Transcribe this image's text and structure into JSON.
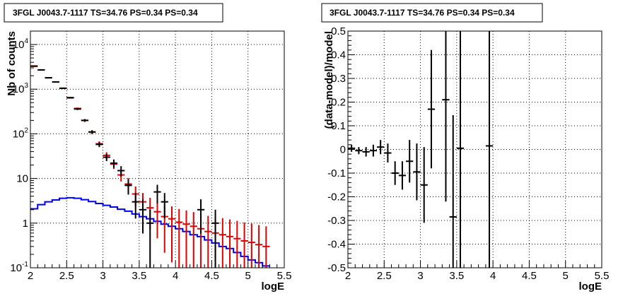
{
  "colors": {
    "data": "#000000",
    "model_total": "#e00000",
    "model_source": "#0000e6",
    "grid": "#000000"
  },
  "chart_data": [
    {
      "type": "histogram",
      "title": "3FGL J0043.7-1117 TS=34.76 PS=0.34 PS=0.34",
      "xlabel": "logE",
      "ylabel": "Nb of counts",
      "xlim": [
        2,
        5.5
      ],
      "ylim": [
        0.1,
        20000
      ],
      "yscale": "log",
      "grid": true,
      "x_ticks": [
        "2",
        "2.5",
        "3",
        "3.5",
        "4",
        "4.5",
        "5",
        "5.5"
      ],
      "y_ticks": [
        {
          "value": 0.1,
          "label": "10",
          "exp": "-1"
        },
        {
          "value": 1,
          "label": "1",
          "exp": ""
        },
        {
          "value": 10,
          "label": "10",
          "exp": ""
        },
        {
          "value": 100,
          "label": "10",
          "exp": "2"
        },
        {
          "value": 1000,
          "label": "10",
          "exp": "3"
        },
        {
          "value": 10000,
          "label": "10",
          "exp": "4"
        }
      ],
      "bin_centers": [
        2.05,
        2.15,
        2.25,
        2.35,
        2.45,
        2.55,
        2.65,
        2.75,
        2.85,
        2.95,
        3.05,
        3.15,
        3.25,
        3.35,
        3.45,
        3.55,
        3.65,
        3.75,
        3.85,
        3.95,
        4.05,
        4.15,
        4.25,
        4.35,
        4.45,
        4.55,
        4.65,
        4.75,
        4.85,
        4.95,
        5.05,
        5.15,
        5.25
      ],
      "bin_width": 0.1,
      "series": [
        {
          "key": "data",
          "values": [
            3300,
            2700,
            1800,
            1450,
            1050,
            640,
            360,
            200,
            110,
            58,
            30,
            22,
            15,
            7,
            3,
            2,
            1,
            5,
            3,
            0,
            0,
            0,
            0,
            2,
            0,
            1,
            0,
            0,
            0,
            0,
            0,
            0,
            0
          ]
        },
        {
          "key": "model_total",
          "values": [
            3250,
            2700,
            1800,
            1450,
            1050,
            650,
            370,
            200,
            110,
            60,
            33,
            21,
            12,
            7.5,
            4.5,
            3,
            2.2,
            1.8,
            1.4,
            1.25,
            1.05,
            0.95,
            0.85,
            0.75,
            0.65,
            0.6,
            0.55,
            0.5,
            0.45,
            0.4,
            0.37,
            0.33,
            0.3
          ]
        },
        {
          "key": "model_source",
          "values": [
            2.1,
            2.6,
            3.0,
            3.3,
            3.6,
            3.7,
            3.6,
            3.35,
            3.05,
            2.75,
            2.5,
            2.3,
            2.05,
            1.85,
            1.6,
            1.4,
            1.25,
            1.1,
            0.95,
            0.85,
            0.75,
            0.65,
            0.55,
            0.5,
            0.42,
            0.36,
            0.3,
            0.27,
            0.22,
            0.18,
            0.15,
            0.13,
            0.11
          ]
        }
      ]
    },
    {
      "type": "scatter",
      "title": "3FGL J0043.7-1117 TS=34.76 PS=0.34 PS=0.34",
      "xlabel": "logE",
      "ylabel": "(data-model)/model",
      "xlim": [
        2,
        5.5
      ],
      "ylim": [
        -0.5,
        0.5
      ],
      "grid": true,
      "x_ticks": [
        "2",
        "2.5",
        "3",
        "3.5",
        "4",
        "4.5",
        "5",
        "5.5"
      ],
      "y_ticks": [
        "-0.5",
        "-0.4",
        "-0.3",
        "-0.2",
        "-0.1",
        "0",
        "0.1",
        "0.2",
        "0.3",
        "0.4",
        "0.5"
      ],
      "points": [
        {
          "x": 2.05,
          "y": 0.005,
          "err": 0.015
        },
        {
          "x": 2.15,
          "y": -0.005,
          "err": 0.015
        },
        {
          "x": 2.25,
          "y": -0.01,
          "err": 0.02
        },
        {
          "x": 2.35,
          "y": -0.005,
          "err": 0.025
        },
        {
          "x": 2.45,
          "y": 0.01,
          "err": 0.03
        },
        {
          "x": 2.55,
          "y": -0.015,
          "err": 0.04
        },
        {
          "x": 2.65,
          "y": -0.1,
          "err": 0.05
        },
        {
          "x": 2.75,
          "y": -0.11,
          "err": 0.06
        },
        {
          "x": 2.85,
          "y": -0.05,
          "err": 0.09
        },
        {
          "x": 2.95,
          "y": -0.095,
          "err": 0.12
        },
        {
          "x": 3.05,
          "y": -0.15,
          "err": 0.16
        },
        {
          "x": 3.15,
          "y": 0.17,
          "err": 0.25
        },
        {
          "x": 3.35,
          "y": 0.21,
          "err": 0.43
        },
        {
          "x": 3.45,
          "y": -0.285,
          "err": 0.43
        },
        {
          "x": 3.55,
          "y": 0.005,
          "err": 0.6
        },
        {
          "x": 3.95,
          "y": 0.015,
          "err": 0.6
        }
      ]
    }
  ]
}
